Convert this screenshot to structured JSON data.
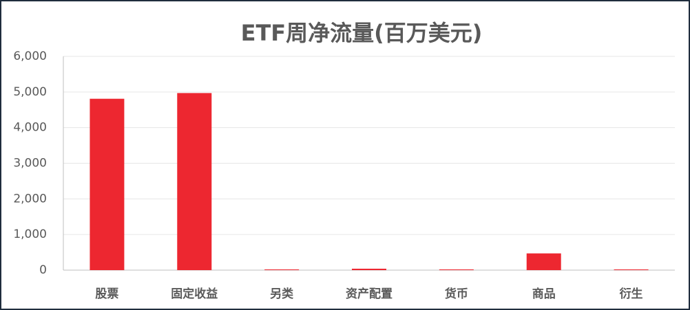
{
  "chart_data": {
    "type": "bar",
    "title": "ETF周净流量(百万美元)",
    "categories": [
      "股票",
      "固定收益",
      "另类",
      "资产配置",
      "货币",
      "商品",
      "衍生"
    ],
    "values": [
      4810,
      4970,
      20,
      40,
      20,
      470,
      20
    ],
    "color": "#ed2730",
    "ylim": [
      0,
      6000
    ],
    "yticks": [
      0,
      {
        "value": 1000,
        "label": "1,000"
      },
      {
        "value": 2000,
        "label": "2,000"
      },
      {
        "value": 3000,
        "label": "3,000"
      },
      {
        "value": 4000,
        "label": "4,000"
      },
      {
        "value": 5000,
        "label": "5,000"
      },
      {
        "value": 6000,
        "label": "6,000"
      }
    ],
    "grid": true
  }
}
